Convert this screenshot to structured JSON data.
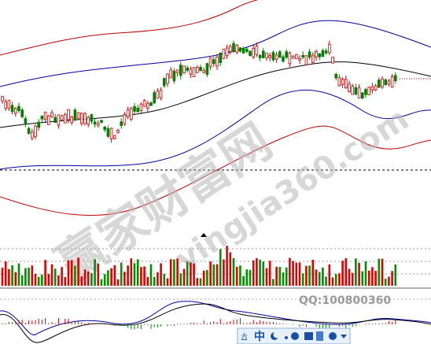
{
  "watermark": {
    "title": "赢家财富网",
    "site": "yingjia360.com",
    "contact": "QQ:100800360"
  },
  "toolbar": {
    "language": "中"
  }
}
